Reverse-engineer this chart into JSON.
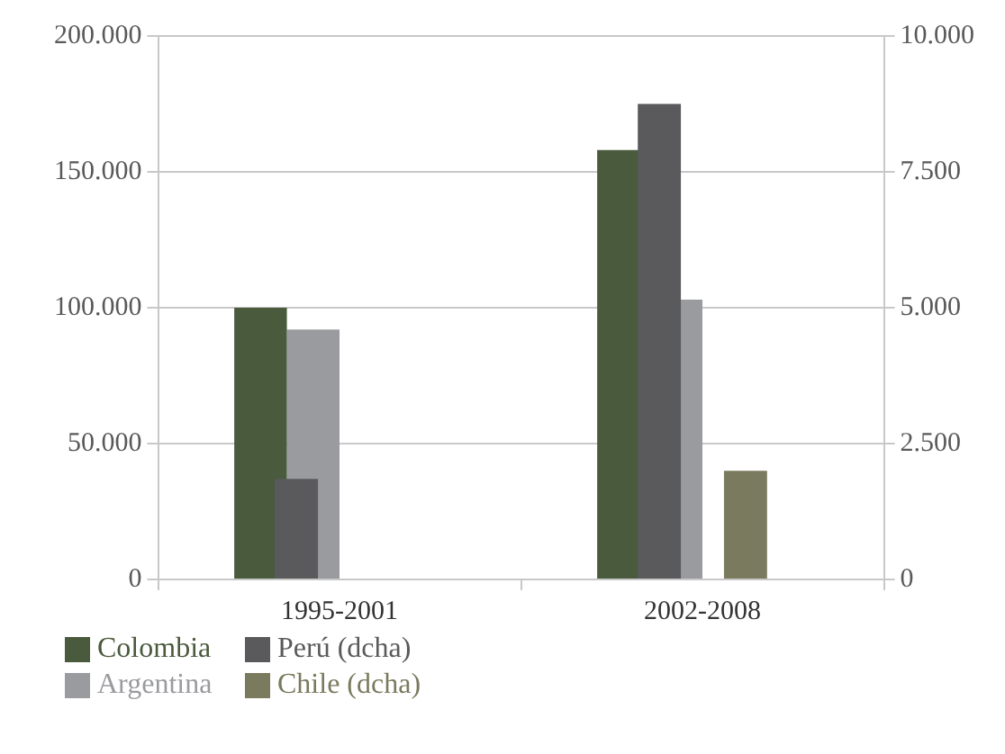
{
  "chart_data": {
    "type": "bar",
    "categories": [
      "1995-2001",
      "2002-2008"
    ],
    "series": [
      {
        "name": "Colombia",
        "color": "#4a5a3d",
        "values": [
          100000,
          158000
        ]
      },
      {
        "name": "Perú (dcha)",
        "color": "#5a5a5c",
        "values": [
          1850,
          8750
        ],
        "axis": "y2"
      },
      {
        "name": "Argentina",
        "color": "#9a9b9f",
        "values": [
          92000,
          103000
        ]
      },
      {
        "name": "Chile (dcha)",
        "color": "#7a7a5e",
        "values": [
          null,
          2000
        ],
        "axis": "y2"
      }
    ],
    "ylim": [
      0,
      200000
    ],
    "yticks": [
      {
        "value": 0,
        "label": "0"
      },
      {
        "value": 50000,
        "label": "50.000"
      },
      {
        "value": 100000,
        "label": "100.000"
      },
      {
        "value": 150000,
        "label": "150.000"
      },
      {
        "value": 200000,
        "label": "200.000"
      }
    ],
    "y2lim": [
      0,
      10000
    ],
    "y2ticks": [
      {
        "value": 0,
        "label": "0"
      },
      {
        "value": 2500,
        "label": "2.500"
      },
      {
        "value": 5000,
        "label": "5.000"
      },
      {
        "value": 7500,
        "label": "7.500"
      },
      {
        "value": 10000,
        "label": "10.000"
      }
    ],
    "grid": "y",
    "legend": "bottom left"
  }
}
